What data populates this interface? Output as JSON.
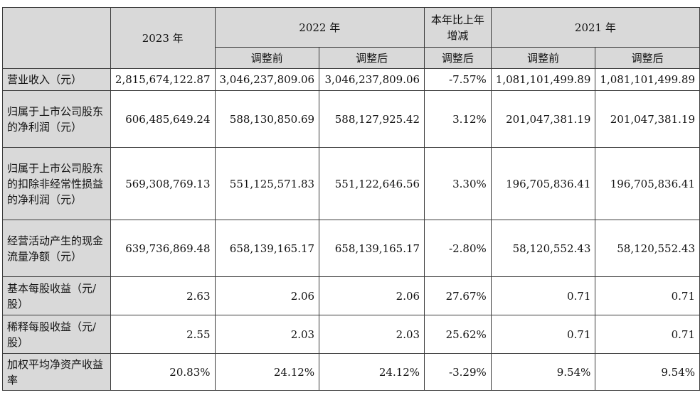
{
  "header": {
    "col_2023": "2023 年",
    "col_2022": "2022 年",
    "col_change": "本年比上年增减",
    "col_2021": "2021 年",
    "sub_before": "调整前",
    "sub_after": "调整后",
    "sub_change_after": "调整后"
  },
  "rows": [
    {
      "label": "营业收入（元）",
      "v2023": "2,815,674,122.87",
      "v2022_before": "3,046,237,809.06",
      "v2022_after": "3,046,237,809.06",
      "change": "-7.57%",
      "v2021_before": "1,081,101,499.89",
      "v2021_after": "1,081,101,499.89"
    },
    {
      "label": "归属于上市公司股东的净利润（元）",
      "v2023": "606,485,649.24",
      "v2022_before": "588,130,850.69",
      "v2022_after": "588,127,925.42",
      "change": "3.12%",
      "v2021_before": "201,047,381.19",
      "v2021_after": "201,047,381.19"
    },
    {
      "label": "归属于上市公司股东的扣除非经常性损益的净利润（元）",
      "v2023": "569,308,769.13",
      "v2022_before": "551,125,571.83",
      "v2022_after": "551,122,646.56",
      "change": "3.30%",
      "v2021_before": "196,705,836.41",
      "v2021_after": "196,705,836.41"
    },
    {
      "label": "经营活动产生的现金流量净额（元）",
      "v2023": "639,736,869.48",
      "v2022_before": "658,139,165.17",
      "v2022_after": "658,139,165.17",
      "change": "-2.80%",
      "v2021_before": "58,120,552.43",
      "v2021_after": "58,120,552.43"
    },
    {
      "label": "基本每股收益（元/股）",
      "v2023": "2.63",
      "v2022_before": "2.06",
      "v2022_after": "2.06",
      "change": "27.67%",
      "v2021_before": "0.71",
      "v2021_after": "0.71"
    },
    {
      "label": "稀释每股收益（元/股）",
      "v2023": "2.55",
      "v2022_before": "2.03",
      "v2022_after": "2.03",
      "change": "25.62%",
      "v2021_before": "0.71",
      "v2021_after": "0.71"
    },
    {
      "label": "加权平均净资产收益率",
      "v2023": "20.83%",
      "v2022_before": "24.12%",
      "v2022_after": "24.12%",
      "change": "-3.29%",
      "v2021_before": "9.54%",
      "v2021_after": "9.54%"
    }
  ]
}
